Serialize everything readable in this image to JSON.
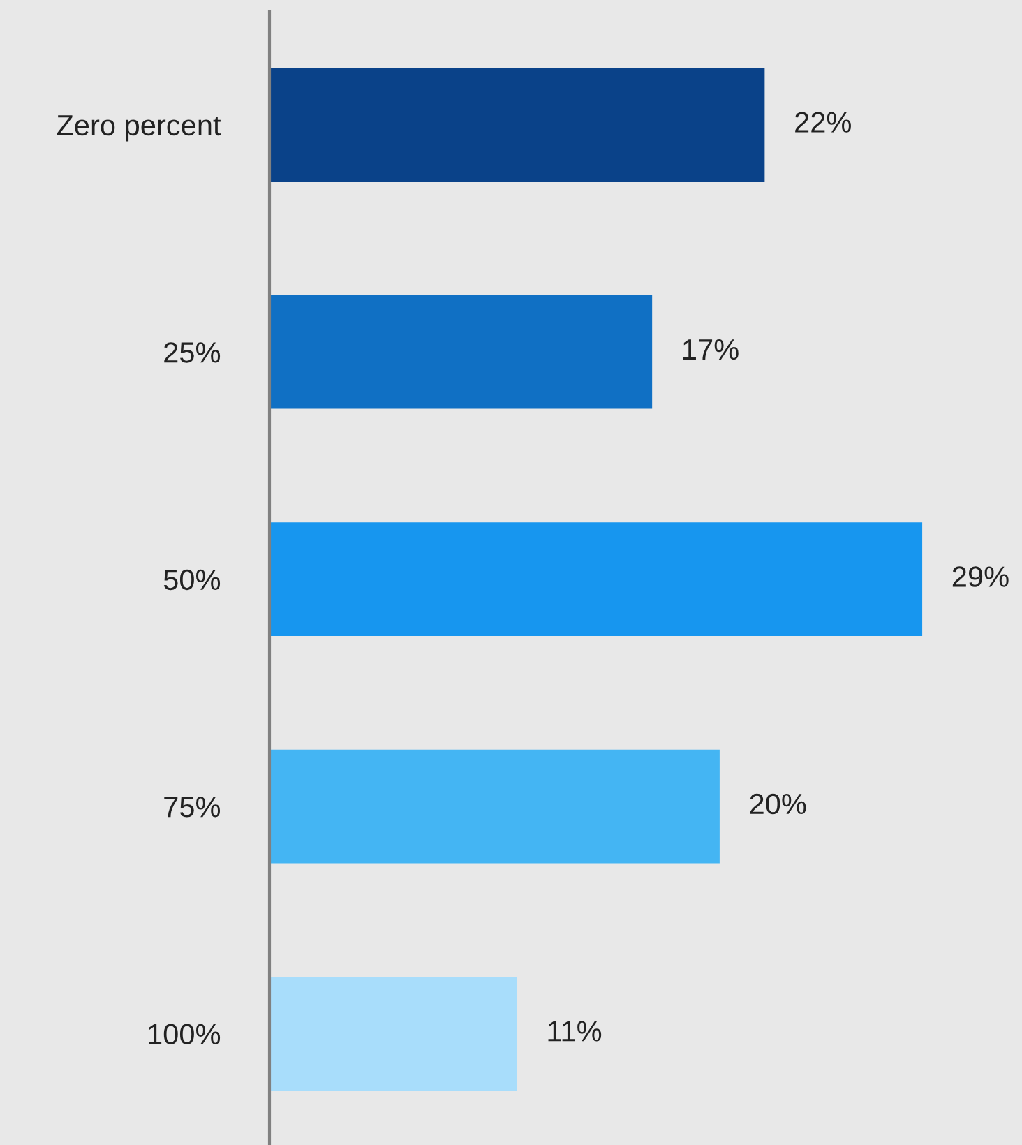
{
  "chart_data": {
    "type": "bar",
    "orientation": "horizontal",
    "categories": [
      "Zero percent",
      "25%",
      "50%",
      "75%",
      "100%"
    ],
    "values": [
      22,
      17,
      29,
      20,
      11
    ],
    "colors": [
      "#0a4289",
      "#1070c4",
      "#1796ef",
      "#44b5f3",
      "#a8ddfb"
    ],
    "value_labels": [
      "22%",
      "17%",
      "29%",
      "20%",
      "11%"
    ],
    "tick_labels": "y",
    "grid": false,
    "legend": false
  }
}
